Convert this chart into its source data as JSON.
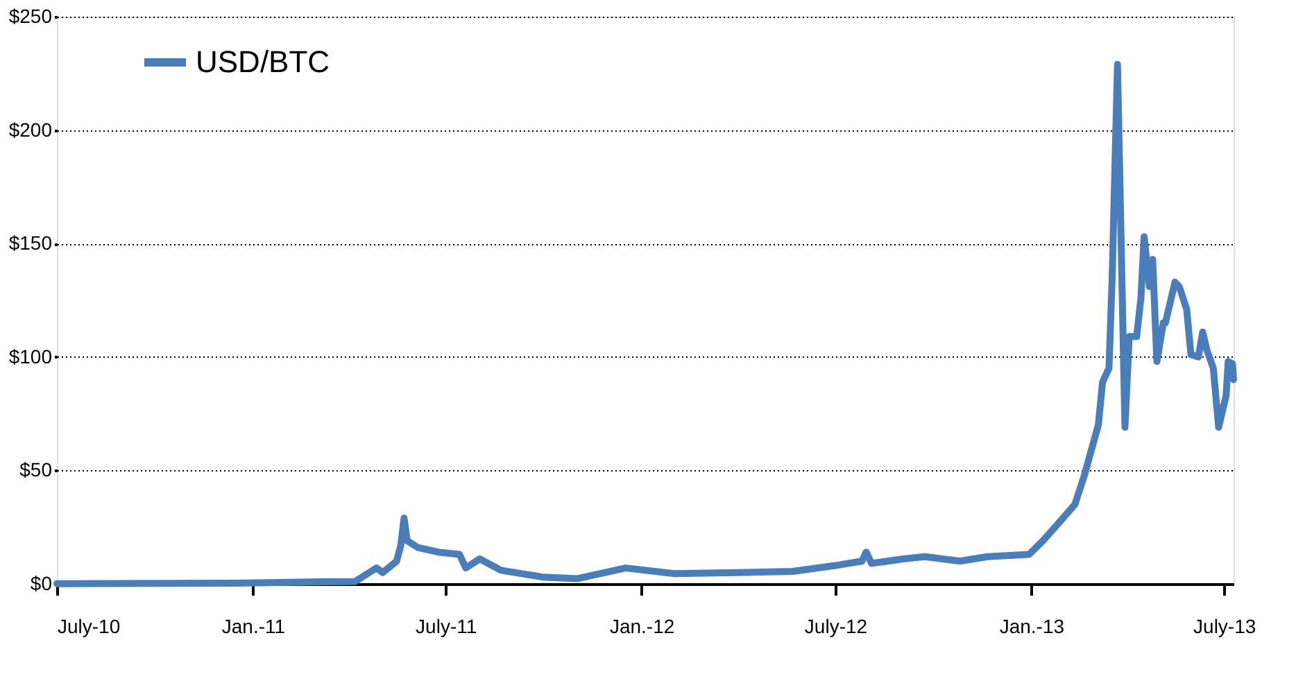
{
  "chart_data": {
    "type": "line",
    "legend": "top left",
    "grid": "y",
    "line_style": "solid",
    "marker": "none",
    "xlim": [
      "2010-07-01",
      "2013-07-10"
    ],
    "ylim": [
      0,
      250
    ],
    "xticks": [
      {
        "value": "2010-07-01",
        "label": "July-10"
      },
      {
        "value": "2011-01-01",
        "label": "Jan.-11"
      },
      {
        "value": "2011-07-01",
        "label": "July-11"
      },
      {
        "value": "2012-01-01",
        "label": "Jan.-12"
      },
      {
        "value": "2012-07-01",
        "label": "July-12"
      },
      {
        "value": "2013-01-01",
        "label": "Jan.-13"
      },
      {
        "value": "2013-07-01",
        "label": "July-13"
      }
    ],
    "yticks": [
      {
        "value": 0,
        "label": "$0"
      },
      {
        "value": 50,
        "label": "$50"
      },
      {
        "value": 100,
        "label": "$100"
      },
      {
        "value": 150,
        "label": "$150"
      },
      {
        "value": 200,
        "label": "$200"
      },
      {
        "value": 250,
        "label": "$250"
      }
    ],
    "x": [
      "2010-07-01",
      "2010-12-17",
      "2011-03-06",
      "2011-04-07",
      "2011-04-27",
      "2011-05-03",
      "2011-05-16",
      "2011-05-20",
      "2011-05-23",
      "2011-05-26",
      "2011-06-05",
      "2011-06-24",
      "2011-07-14",
      "2011-07-20",
      "2011-08-02",
      "2011-08-22",
      "2011-09-30",
      "2011-11-02",
      "2011-12-17",
      "2012-02-01",
      "2012-03-31",
      "2012-05-22",
      "2012-06-30",
      "2012-07-26",
      "2012-07-30",
      "2012-08-04",
      "2012-09-03",
      "2012-09-23",
      "2012-10-26",
      "2012-11-21",
      "2012-12-30",
      "2013-01-12",
      "2013-01-29",
      "2013-02-11",
      "2013-02-20",
      "2013-03-05",
      "2013-03-09",
      "2013-03-15",
      "2013-03-18",
      "2013-03-23",
      "2013-03-30",
      "2013-04-03",
      "2013-04-09",
      "2013-04-10",
      "2013-04-14",
      "2013-04-17",
      "2013-04-22",
      "2013-04-25",
      "2013-04-29",
      "2013-05-05",
      "2013-05-07",
      "2013-05-16",
      "2013-05-20",
      "2013-05-27",
      "2013-05-31",
      "2013-06-07",
      "2013-06-11",
      "2013-06-15",
      "2013-06-21",
      "2013-06-26",
      "2013-07-03",
      "2013-07-05",
      "2013-07-09",
      "2013-07-10"
    ],
    "series": [
      {
        "name": "USD/BTC",
        "color": "#4a7ebb",
        "values": [
          0.1,
          0.3,
          0.9,
          1,
          7,
          5,
          10,
          17,
          29,
          19,
          16,
          14,
          13,
          7,
          11,
          6,
          3,
          2.3,
          7,
          4.5,
          5,
          5.5,
          8,
          10,
          14,
          9,
          11,
          12,
          10,
          12,
          13,
          19,
          28,
          35,
          48,
          70,
          89,
          95,
          135,
          229,
          69,
          109,
          109,
          109,
          126,
          153,
          131,
          143,
          98,
          115,
          115,
          133,
          131,
          121,
          101,
          100,
          111,
          103,
          95,
          69,
          83,
          98,
          97,
          90
        ]
      }
    ]
  }
}
